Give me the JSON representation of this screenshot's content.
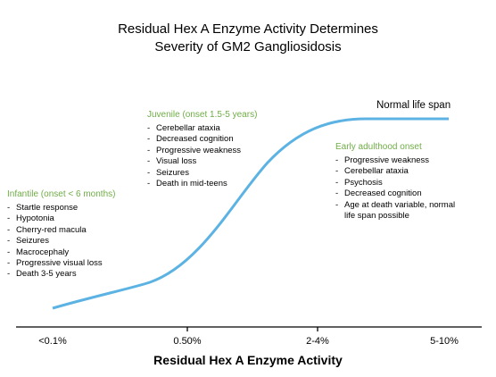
{
  "title": {
    "line1": "Residual Hex A Enzyme Activity Determines",
    "line2": "Severity of GM2 Gangliosidosis"
  },
  "colors": {
    "curve": "#5cb3e3",
    "header": "#70ad47",
    "axis": "#000000"
  },
  "normal_life_span": "Normal life span",
  "groups": {
    "infantile": {
      "header": "Infantile (onset < 6 months)",
      "items": [
        "Startle response",
        "Hypotonia",
        "Cherry-red macula",
        "Seizures",
        "Macrocephaly",
        "Progressive visual loss",
        "Death 3-5 years"
      ]
    },
    "juvenile": {
      "header": "Juvenile (onset 1.5-5 years)",
      "items": [
        "Cerebellar ataxia",
        "Decreased cognition",
        "Progressive weakness",
        "Visual loss",
        "Seizures",
        "Death in mid-teens"
      ]
    },
    "adult": {
      "header": "Early adulthood onset",
      "items": [
        "Progressive weakness",
        "Cerebellar ataxia",
        "Psychosis",
        "Decreased cognition",
        "Age at death variable,  normal",
        "life span possible"
      ]
    }
  },
  "x_axis": {
    "ticks": [
      "<0.1%",
      "0.50%",
      "2-4%",
      "5-10%"
    ],
    "label": "Residual Hex A Enzyme Activity"
  }
}
